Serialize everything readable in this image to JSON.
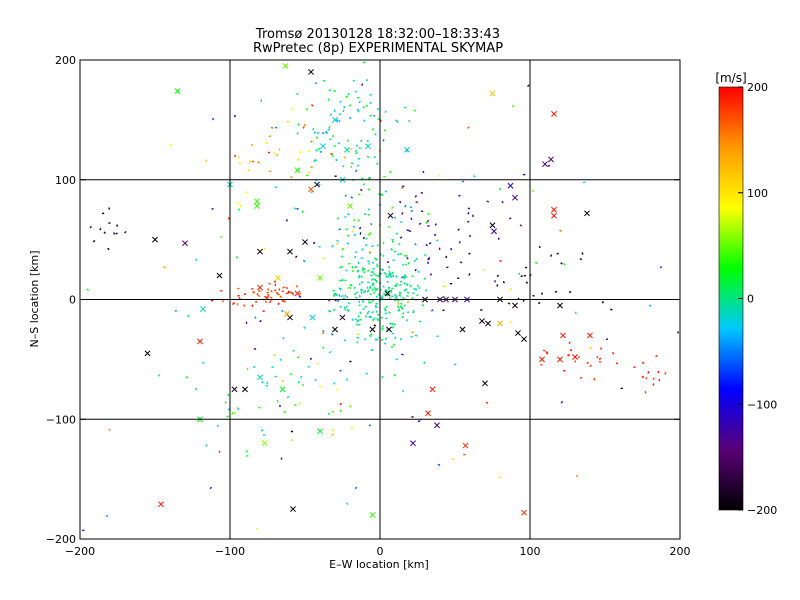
{
  "chart_data": {
    "type": "scatter",
    "title": "Tromsø 20130128 18:32:00–18:33:43",
    "subtitle": "RwPretec (8p) EXPERIMENTAL SKYMAP",
    "xlabel": "E–W location [km]",
    "ylabel": "N–S location [km]",
    "xlim": [
      -200,
      200
    ],
    "ylim": [
      -200,
      200
    ],
    "xticks": [
      -200,
      -100,
      0,
      100,
      200
    ],
    "yticks": [
      -200,
      -100,
      0,
      100,
      200
    ],
    "grid_lines": [
      -100,
      0,
      100
    ],
    "colorbar": {
      "label": "[m/s]",
      "range": [
        -200,
        200
      ],
      "ticks": [
        -200,
        -100,
        0,
        100,
        200
      ],
      "colors": [
        "#000000",
        "#5a0078",
        "#0000ff",
        "#00c8ff",
        "#00ff00",
        "#ffff00",
        "#ff9900",
        "#ff0000"
      ]
    },
    "point_groups": [
      {
        "name": "cluster-center",
        "center": [
          0,
          5
        ],
        "spread": [
          15,
          18
        ],
        "count": 260,
        "vmin": -20,
        "vmax": 20
      },
      {
        "name": "cluster-north",
        "center": [
          -28,
          145
        ],
        "spread": [
          18,
          20
        ],
        "count": 60,
        "vmin": -40,
        "vmax": 30
      },
      {
        "name": "column-north",
        "center": [
          -10,
          70
        ],
        "spread": [
          20,
          60
        ],
        "count": 120,
        "vmin": -60,
        "vmax": 40
      },
      {
        "name": "cluster-west",
        "center": [
          -78,
          5
        ],
        "spread": [
          14,
          5
        ],
        "count": 55,
        "vmin": 160,
        "vmax": 200
      },
      {
        "name": "cluster-east-blue",
        "center": [
          35,
          60
        ],
        "spread": [
          25,
          20
        ],
        "count": 45,
        "vmin": -160,
        "vmax": -90
      },
      {
        "name": "cluster-east-black",
        "center": [
          100,
          10
        ],
        "spread": [
          25,
          20
        ],
        "count": 30,
        "vmin": -200,
        "vmax": -170
      },
      {
        "name": "cluster-southeast-red",
        "center": [
          130,
          -45
        ],
        "spread": [
          15,
          10
        ],
        "count": 20,
        "vmin": 170,
        "vmax": 200
      },
      {
        "name": "cluster-far-east-red",
        "center": [
          180,
          -65
        ],
        "spread": [
          6,
          8
        ],
        "count": 12,
        "vmin": 170,
        "vmax": 200
      },
      {
        "name": "scatter-southwest",
        "center": [
          -70,
          -75
        ],
        "spread": [
          30,
          25
        ],
        "count": 50,
        "vmin": -30,
        "vmax": 80
      },
      {
        "name": "scatter-northwest",
        "center": [
          -65,
          120
        ],
        "spread": [
          25,
          25
        ],
        "count": 35,
        "vmin": 80,
        "vmax": 200
      },
      {
        "name": "scatter-far-west",
        "center": [
          -180,
          60
        ],
        "spread": [
          8,
          10
        ],
        "count": 12,
        "vmin": -200,
        "vmax": -160
      },
      {
        "name": "scatter-broad",
        "center": [
          0,
          0
        ],
        "spread": [
          90,
          90
        ],
        "count": 140,
        "vmin": -200,
        "vmax": 200
      }
    ],
    "x_markers": [
      [
        -46,
        190,
        -195
      ],
      [
        -63,
        195,
        50
      ],
      [
        -135,
        174,
        30
      ],
      [
        75,
        172,
        120
      ],
      [
        116,
        155,
        190
      ],
      [
        -30,
        150,
        -20
      ],
      [
        -38,
        128,
        -20
      ],
      [
        -22,
        125,
        -10
      ],
      [
        -8,
        128,
        -10
      ],
      [
        18,
        125,
        -20
      ],
      [
        110,
        113,
        -150
      ],
      [
        114,
        117,
        -150
      ],
      [
        -100,
        96,
        -10
      ],
      [
        -55,
        108,
        30
      ],
      [
        -25,
        100,
        -15
      ],
      [
        -42,
        96,
        -190
      ],
      [
        -46,
        92,
        170
      ],
      [
        -82,
        82,
        40
      ],
      [
        -82,
        78,
        40
      ],
      [
        87,
        95,
        -110
      ],
      [
        90,
        85,
        -150
      ],
      [
        76,
        57,
        -120
      ],
      [
        75,
        62,
        -200
      ],
      [
        116,
        75,
        190
      ],
      [
        116,
        70,
        190
      ],
      [
        138,
        72,
        -195
      ],
      [
        -20,
        78,
        50
      ],
      [
        7,
        70,
        -195
      ],
      [
        -130,
        47,
        -140
      ],
      [
        -150,
        50,
        -200
      ],
      [
        -50,
        48,
        -190
      ],
      [
        -80,
        40,
        -195
      ],
      [
        -60,
        40,
        -190
      ],
      [
        -107,
        20,
        -200
      ],
      [
        -68,
        18,
        110
      ],
      [
        -40,
        18,
        50
      ],
      [
        -80,
        10,
        190
      ],
      [
        -55,
        5,
        190
      ],
      [
        5,
        5,
        -200
      ],
      [
        30,
        0,
        -200
      ],
      [
        40,
        0,
        -170
      ],
      [
        50,
        0,
        -150
      ],
      [
        58,
        0,
        -120
      ],
      [
        80,
        0,
        -190
      ],
      [
        90,
        -5,
        -190
      ],
      [
        120,
        -5,
        -200
      ],
      [
        -118,
        -8,
        -10
      ],
      [
        -60,
        -15,
        -195
      ],
      [
        -45,
        -15,
        -20
      ],
      [
        -25,
        -15,
        -180
      ],
      [
        -30,
        -25,
        -195
      ],
      [
        -5,
        -25,
        -200
      ],
      [
        6,
        -25,
        -195
      ],
      [
        55,
        -25,
        -200
      ],
      [
        68,
        -18,
        -190
      ],
      [
        72,
        -20,
        -200
      ],
      [
        80,
        -20,
        130
      ],
      [
        92,
        -28,
        -200
      ],
      [
        96,
        -33,
        -195
      ],
      [
        122,
        -30,
        190
      ],
      [
        140,
        -30,
        190
      ],
      [
        -155,
        -45,
        -200
      ],
      [
        -120,
        -35,
        190
      ],
      [
        -97,
        -75,
        -180
      ],
      [
        -90,
        -75,
        -200
      ],
      [
        35,
        -75,
        190
      ],
      [
        70,
        -70,
        -190
      ],
      [
        108,
        -50,
        190
      ],
      [
        120,
        -50,
        190
      ],
      [
        -65,
        -75,
        20
      ],
      [
        -80,
        -65,
        -10
      ],
      [
        -40,
        -110,
        20
      ],
      [
        -77,
        -120,
        60
      ],
      [
        32,
        -95,
        190
      ],
      [
        22,
        -120,
        -120
      ],
      [
        -58,
        -175,
        -200
      ],
      [
        57,
        -122,
        180
      ],
      [
        96,
        -178,
        180
      ],
      [
        -146,
        -171,
        190
      ],
      [
        -5,
        -180,
        40
      ],
      [
        130,
        -48,
        200
      ],
      [
        -120,
        -100,
        20
      ],
      [
        38,
        -105,
        -150
      ],
      [
        44,
        0,
        -140
      ],
      [
        -62,
        -12,
        140
      ]
    ]
  }
}
